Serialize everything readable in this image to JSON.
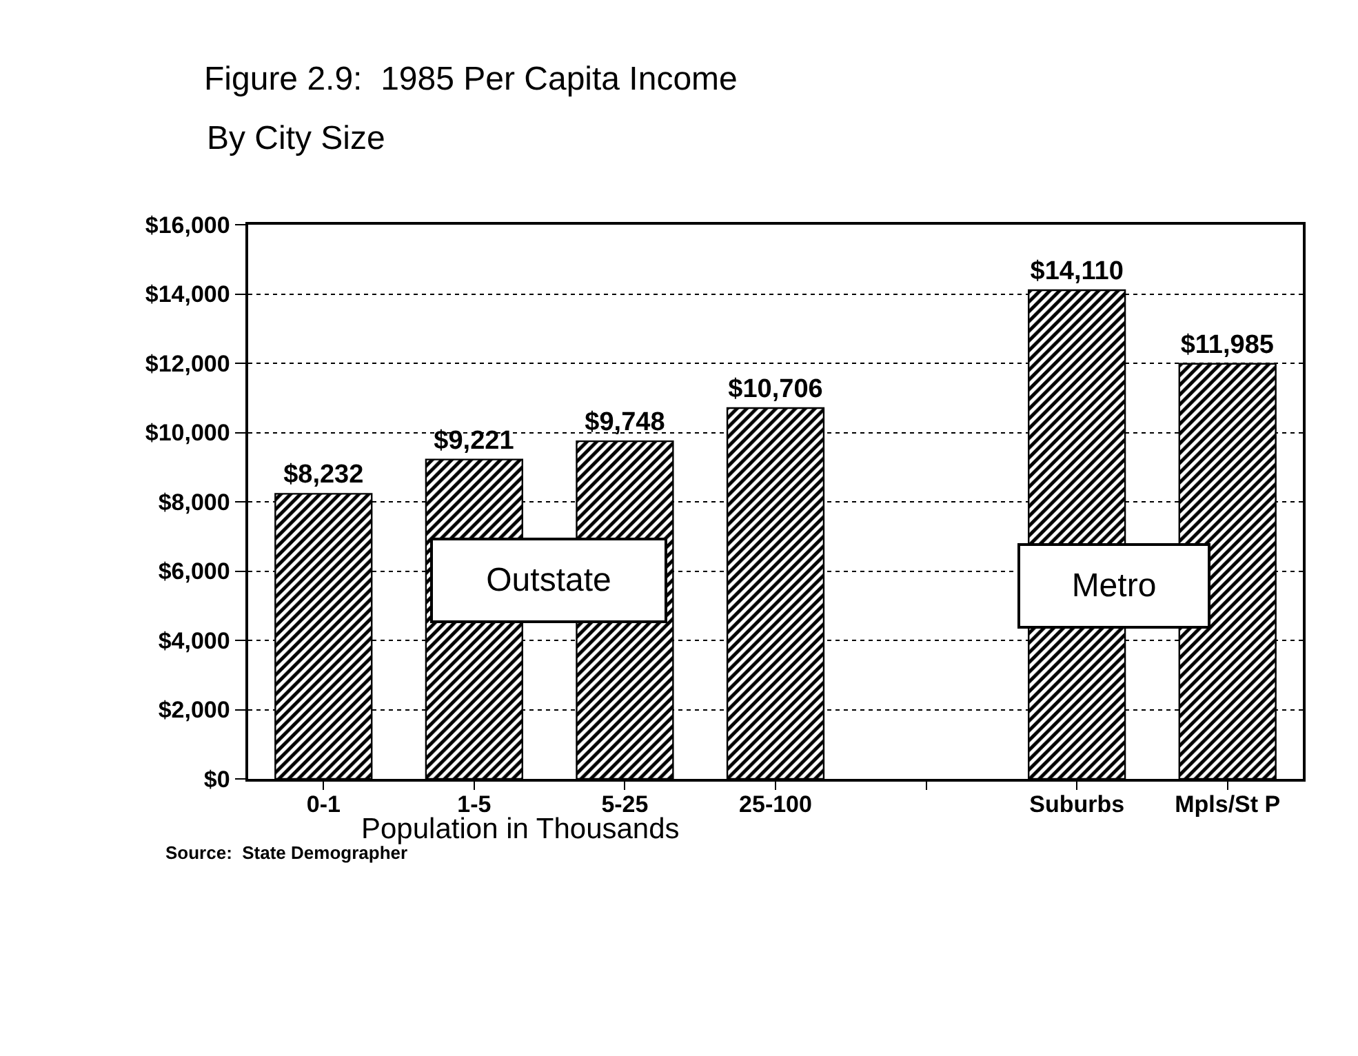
{
  "chart_data": {
    "type": "bar",
    "title": "Figure 2.9:  1985 Per Capita Income",
    "subtitle": "By City Size",
    "xlabel": "Population in Thousands",
    "categories": [
      "0-1",
      "1-5",
      "5-25",
      "25-100",
      null,
      "Suburbs",
      "Mpls/St P"
    ],
    "values": [
      8232,
      9221,
      9748,
      10706,
      null,
      14110,
      11985
    ],
    "value_labels": [
      "$8,232",
      "$9,221",
      "$9,748",
      "$10,706",
      null,
      "$14,110",
      "$11,985"
    ],
    "color": "#000000",
    "ylim": [
      0,
      16000
    ],
    "yticks": [
      {
        "value": 0,
        "label": "$0"
      },
      {
        "value": 2000,
        "label": "$2,000"
      },
      {
        "value": 4000,
        "label": "$4,000"
      },
      {
        "value": 6000,
        "label": "$6,000"
      },
      {
        "value": 8000,
        "label": "$8,000"
      },
      {
        "value": 10000,
        "label": "$10,000"
      },
      {
        "value": 12000,
        "label": "$12,000"
      },
      {
        "value": 14000,
        "label": "$14,000"
      },
      {
        "value": 16000,
        "label": "$16,000"
      }
    ],
    "grid": "y",
    "annotations": [
      "Outstate",
      "Metro",
      "Source:  State Demographer"
    ]
  }
}
